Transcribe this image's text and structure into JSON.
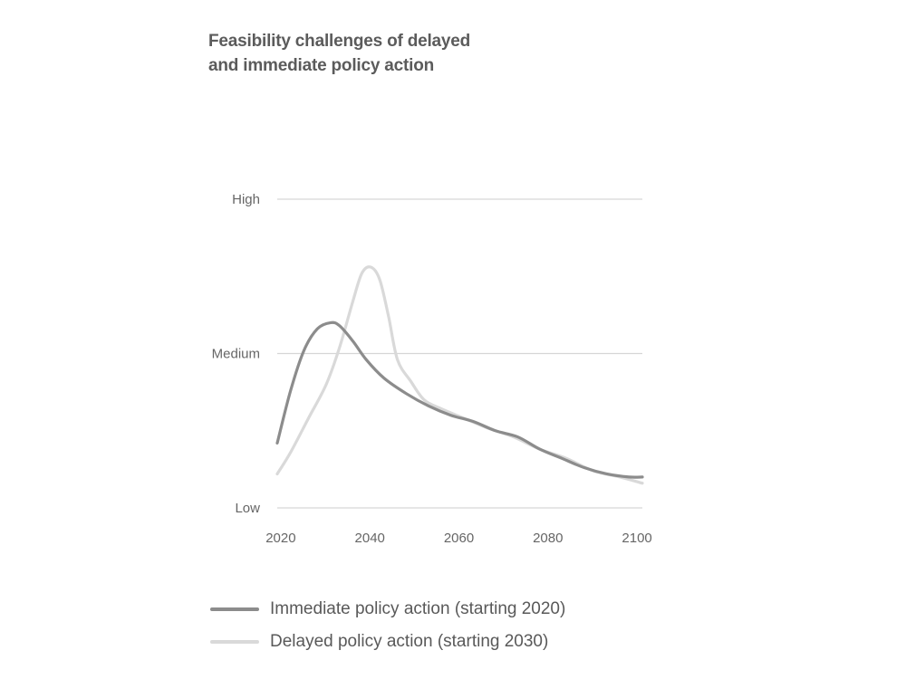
{
  "title_lines": [
    "Feasibility challenges of delayed",
    "and immediate policy action"
  ],
  "chart_data": {
    "type": "line",
    "title": "Feasibility challenges of delayed and immediate policy action",
    "xlabel": "",
    "ylabel": "",
    "xlim": [
      2019,
      2101
    ],
    "ylim": [
      0,
      1
    ],
    "x_ticks": [
      2020,
      2040,
      2060,
      2080,
      2100
    ],
    "y_ticks": [
      {
        "label": "Low",
        "value": 0.0
      },
      {
        "label": "Medium",
        "value": 0.5
      },
      {
        "label": "High",
        "value": 1.0
      }
    ],
    "grid": true,
    "legend_position": "bottom",
    "series": [
      {
        "name": "Immediate policy action (starting 2020)",
        "color": "#8c8c8c",
        "x": [
          2019,
          2022,
          2025,
          2028,
          2031,
          2033,
          2036,
          2039,
          2043,
          2048,
          2053,
          2058,
          2063,
          2068,
          2073,
          2078,
          2083,
          2088,
          2093,
          2098,
          2101
        ],
        "y": [
          0.21,
          0.38,
          0.51,
          0.58,
          0.6,
          0.59,
          0.54,
          0.48,
          0.42,
          0.37,
          0.33,
          0.3,
          0.28,
          0.25,
          0.23,
          0.19,
          0.16,
          0.13,
          0.11,
          0.1,
          0.1
        ]
      },
      {
        "name": "Delayed policy action (starting 2030)",
        "color": "#d9d9d9",
        "x": [
          2019,
          2022,
          2026,
          2030,
          2033,
          2036,
          2038,
          2040,
          2042,
          2044,
          2046,
          2049,
          2052,
          2056,
          2061,
          2066,
          2072,
          2078,
          2084,
          2090,
          2096,
          2101
        ],
        "y": [
          0.11,
          0.18,
          0.29,
          0.4,
          0.52,
          0.67,
          0.76,
          0.78,
          0.74,
          0.62,
          0.48,
          0.41,
          0.35,
          0.32,
          0.29,
          0.26,
          0.23,
          0.19,
          0.16,
          0.12,
          0.1,
          0.08
        ]
      }
    ]
  }
}
